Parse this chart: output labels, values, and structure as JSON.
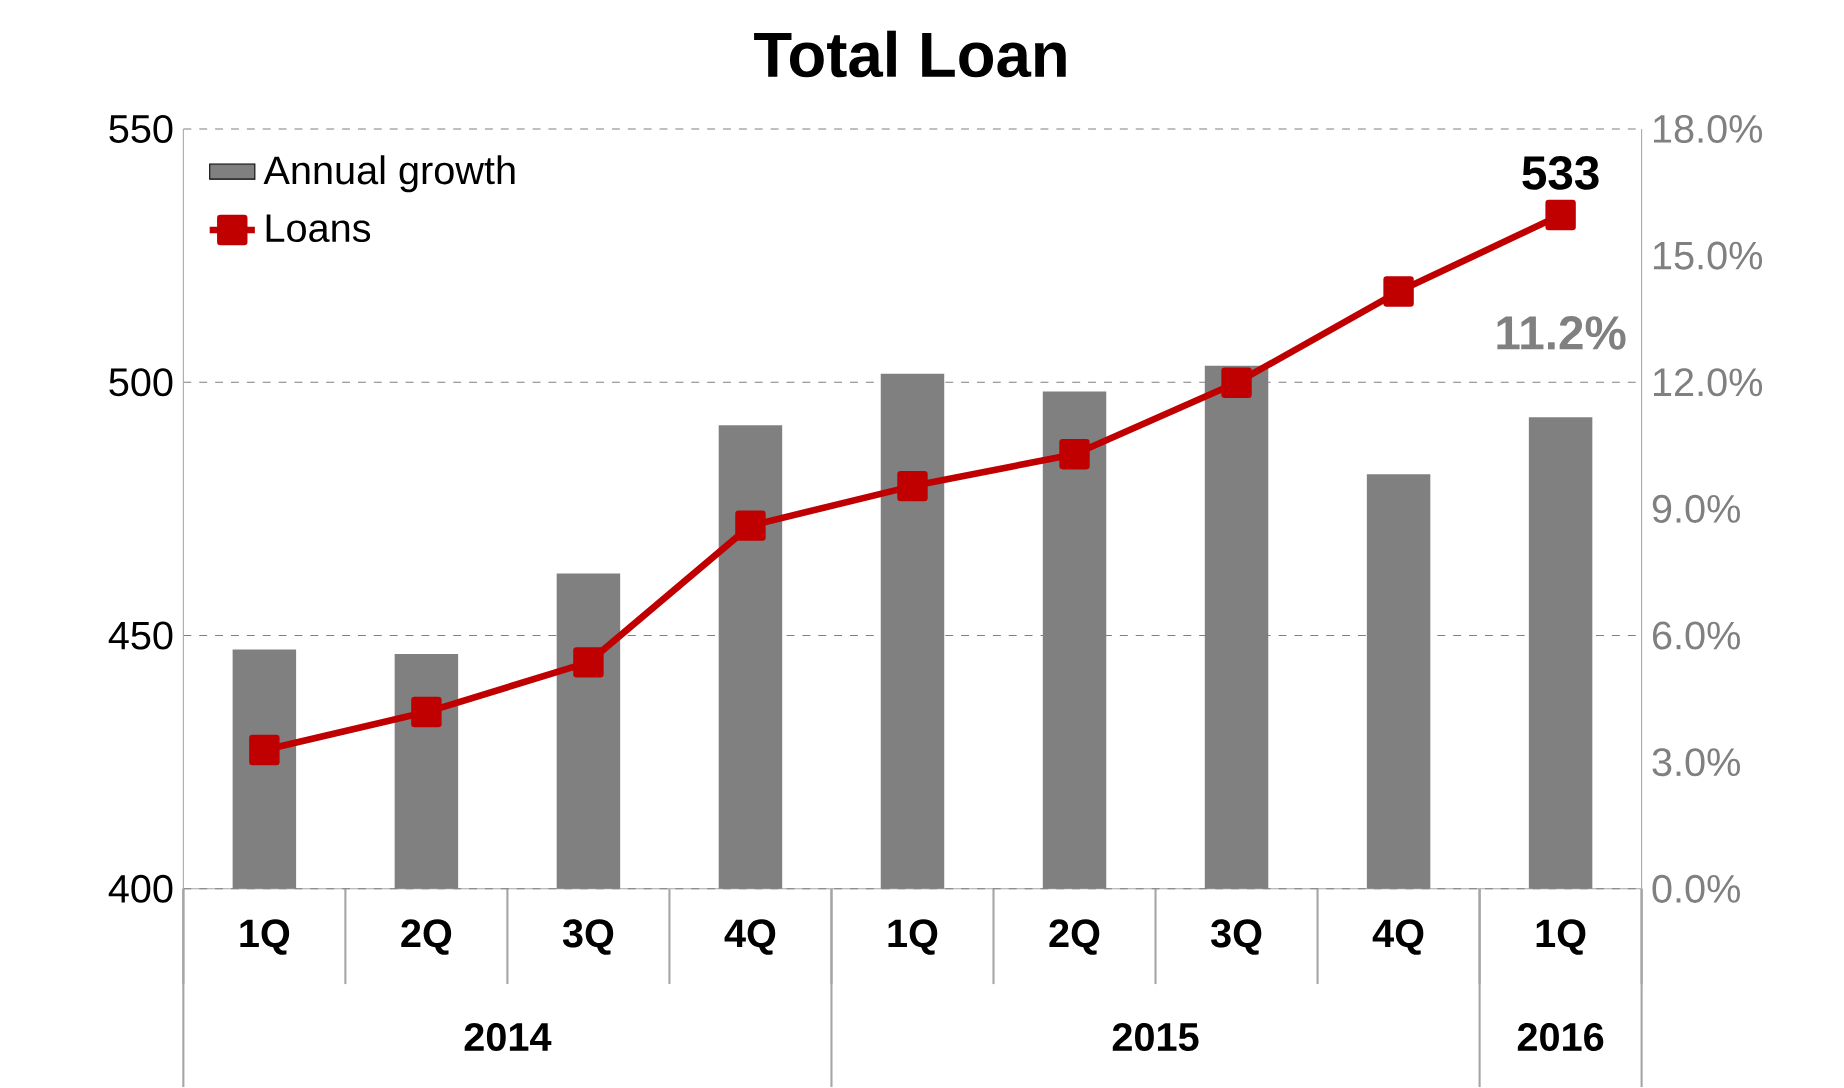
{
  "chart_data": {
    "type": "bar",
    "title": "Total Loan",
    "categories": [
      "1Q",
      "2Q",
      "3Q",
      "4Q",
      "1Q",
      "2Q",
      "3Q",
      "4Q",
      "1Q"
    ],
    "series": [
      {
        "name": "Annual growth",
        "axis": "y2",
        "color": "#808080",
        "values": [
          5.67,
          5.56,
          7.47,
          10.98,
          12.2,
          11.78,
          12.39,
          9.82,
          11.17
        ],
        "value_labels": [
          null,
          null,
          null,
          null,
          null,
          null,
          null,
          null,
          "11.2%"
        ]
      },
      {
        "name": "Loans",
        "type": "line",
        "color": "#c00000",
        "marker": "square",
        "values": [
          427.4,
          434.9,
          444.7,
          471.7,
          479.5,
          485.8,
          499.9,
          517.9,
          533
        ],
        "value_labels": [
          null,
          null,
          null,
          null,
          null,
          null,
          null,
          null,
          "533"
        ]
      }
    ],
    "ylim": [
      400,
      550
    ],
    "yticks": [
      400,
      450,
      500,
      550
    ],
    "y2lim": [
      0,
      18
    ],
    "y2ticks": [
      {
        "value": 0,
        "label": "0.0%"
      },
      {
        "value": 3,
        "label": "3.0%"
      },
      {
        "value": 6,
        "label": "6.0%"
      },
      {
        "value": 9,
        "label": "9.0%"
      },
      {
        "value": 12,
        "label": "12.0%"
      },
      {
        "value": 15,
        "label": "15.0%"
      },
      {
        "value": 18,
        "label": "18.0%"
      }
    ],
    "grid": "y",
    "legend": "top left",
    "annotations": [
      "2014",
      "2015",
      "2016"
    ]
  }
}
